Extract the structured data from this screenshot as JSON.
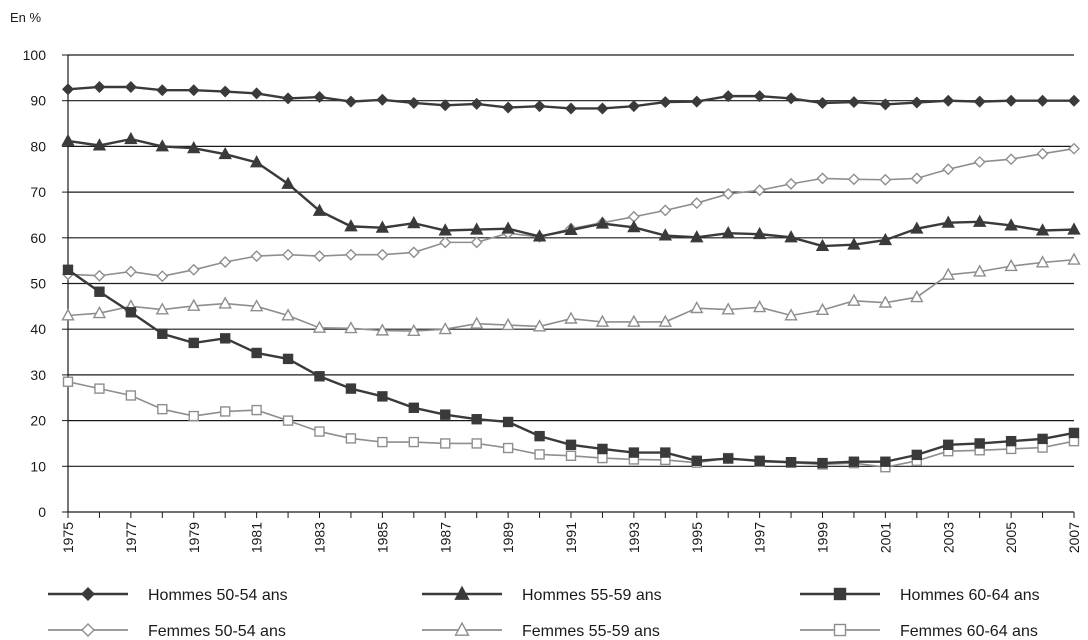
{
  "chart_data": {
    "type": "line",
    "unit_label": "En %",
    "ylim": [
      0,
      100
    ],
    "yticks": [
      0,
      10,
      20,
      30,
      40,
      50,
      60,
      70,
      80,
      90,
      100
    ],
    "xlim": [
      1975,
      2007
    ],
    "xtick_labels": [
      "1975",
      "1977",
      "1979",
      "1981",
      "1983",
      "1985",
      "1987",
      "1989",
      "1991",
      "1993",
      "1995",
      "1997",
      "1999",
      "2001",
      "2003",
      "2005",
      "2007"
    ],
    "grid": "horizontal",
    "legend_position": "bottom",
    "x": [
      1975,
      1976,
      1977,
      1978,
      1979,
      1980,
      1981,
      1982,
      1983,
      1984,
      1985,
      1986,
      1987,
      1988,
      1989,
      1990,
      1991,
      1992,
      1993,
      1994,
      1995,
      1996,
      1997,
      1998,
      1999,
      2000,
      2001,
      2002,
      2003,
      2004,
      2005,
      2006,
      2007
    ],
    "series": [
      {
        "name": "Hommes 50-54 ans",
        "color": "#3a3a3a",
        "marker": "diamond-filled",
        "values": [
          92.5,
          93,
          93,
          92.3,
          92.3,
          92,
          91.6,
          90.5,
          90.8,
          89.8,
          90.2,
          89.5,
          89,
          89.3,
          88.5,
          88.8,
          88.3,
          88.3,
          88.8,
          89.7,
          89.8,
          91,
          91,
          90.5,
          89.5,
          89.7,
          89.2,
          89.6,
          90,
          89.8,
          90,
          90,
          90
        ]
      },
      {
        "name": "Hommes 55-59 ans",
        "color": "#3a3a3a",
        "marker": "triangle-filled",
        "values": [
          81.2,
          80.2,
          81.6,
          80,
          79.6,
          78.3,
          76.5,
          71.8,
          65.9,
          62.5,
          62.2,
          63.2,
          61.6,
          61.8,
          62,
          60.3,
          61.7,
          63.1,
          62.3,
          60.5,
          60.1,
          61,
          60.8,
          60.1,
          58.2,
          58.5,
          59.5,
          62,
          63.3,
          63.5,
          62.7,
          61.6,
          61.8
        ]
      },
      {
        "name": "Hommes 60-64 ans",
        "color": "#3a3a3a",
        "marker": "square-filled",
        "values": [
          53,
          48.2,
          43.7,
          39,
          37,
          38,
          34.8,
          33.5,
          29.7,
          27,
          25.3,
          22.8,
          21.3,
          20.3,
          19.7,
          16.6,
          14.7,
          13.8,
          13,
          13,
          11.2,
          11.7,
          11.2,
          10.9,
          10.7,
          11,
          11,
          12.5,
          14.7,
          15,
          15.5,
          16,
          17.3
        ]
      },
      {
        "name": "Femmes 50-54 ans",
        "color": "#8e8e8e",
        "marker": "diamond-open",
        "values": [
          52,
          51.7,
          52.6,
          51.6,
          53,
          54.7,
          56,
          56.3,
          56,
          56.3,
          56.3,
          56.8,
          59,
          59,
          61,
          60.2,
          62,
          63.3,
          64.6,
          66,
          67.6,
          69.6,
          70.4,
          71.8,
          73,
          72.8,
          72.7,
          73,
          75,
          76.6,
          77.2,
          78.4,
          79.5
        ]
      },
      {
        "name": "Femmes 55-59 ans",
        "color": "#8e8e8e",
        "marker": "triangle-open",
        "values": [
          43,
          43.5,
          45,
          44.3,
          45.1,
          45.6,
          45,
          43,
          40.3,
          40.2,
          39.7,
          39.6,
          40,
          41.2,
          40.9,
          40.6,
          42.3,
          41.6,
          41.6,
          41.6,
          44.6,
          44.3,
          44.8,
          43,
          44.2,
          46.2,
          45.8,
          47,
          51.9,
          52.6,
          53.8,
          54.6,
          55.2
        ]
      },
      {
        "name": "Femmes 60-64 ans",
        "color": "#8e8e8e",
        "marker": "square-open",
        "values": [
          28.5,
          27,
          25.5,
          22.5,
          21,
          22,
          22.3,
          20,
          17.6,
          16.1,
          15.3,
          15.3,
          15,
          15,
          14,
          12.6,
          12.3,
          11.8,
          11.5,
          11.4,
          10.8,
          11.8,
          11,
          10.8,
          10.4,
          10.7,
          9.8,
          11.2,
          13.3,
          13.5,
          13.8,
          14.1,
          15.5
        ]
      }
    ],
    "legend": [
      {
        "series_index": 0
      },
      {
        "series_index": 1
      },
      {
        "series_index": 2
      },
      {
        "series_index": 3
      },
      {
        "series_index": 4
      },
      {
        "series_index": 5
      }
    ]
  }
}
